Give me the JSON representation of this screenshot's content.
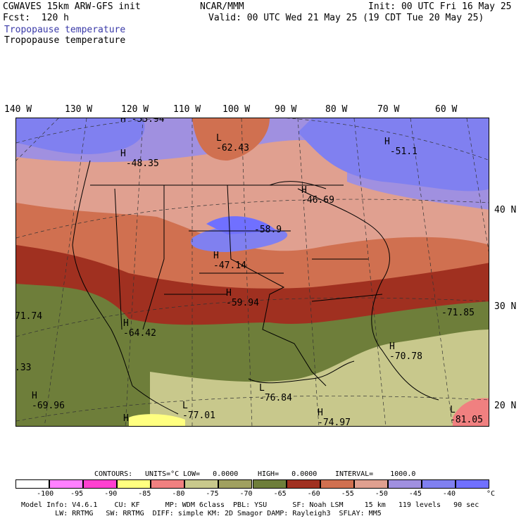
{
  "header": {
    "model_line": "CGWAVES 15km ARW-GFS init",
    "forecast_line": "Fcst:  120 h",
    "org": "NCAR/MMM",
    "init": "Init: 00 UTC Fri 16 May 25",
    "valid": "Valid: 00 UTC Wed 21 May 25 (19 CDT Tue 20 May 25)",
    "field_colored": "Tropopause temperature",
    "field_plain": "Tropopause temperature"
  },
  "axes": {
    "longitudes": [
      "140 W",
      "130 W",
      "120 W",
      "110 W",
      "100 W",
      "90 W",
      "80 W",
      "70 W",
      "60 W"
    ],
    "latitudes": [
      "40 N",
      "30 N",
      "20 N"
    ]
  },
  "extrema": [
    {
      "type": "H",
      "value": "-53.94"
    },
    {
      "type": "H",
      "value": "-48.35"
    },
    {
      "type": "L",
      "value": "-62.43"
    },
    {
      "type": "H",
      "value": "-51.1"
    },
    {
      "type": "H",
      "value": "-46.69"
    },
    {
      "type": "",
      "value": "-58.9"
    },
    {
      "type": "H",
      "value": "-47.14"
    },
    {
      "type": "H",
      "value": "-59.94"
    },
    {
      "type": "",
      "value": "71.74"
    },
    {
      "type": "H",
      "value": "-64.42"
    },
    {
      "type": "",
      "value": "-71.85"
    },
    {
      "type": "H",
      "value": "-70.78"
    },
    {
      "type": "",
      "value": ".33"
    },
    {
      "type": "L",
      "value": "-76.84"
    },
    {
      "type": "H",
      "value": "-69.96"
    },
    {
      "type": "L",
      "value": "-77.01"
    },
    {
      "type": "H",
      "value": "-74.97"
    },
    {
      "type": "L",
      "value": "-81.05"
    },
    {
      "type": "H",
      "value": ""
    }
  ],
  "contours_line": {
    "label": "CONTOURS:",
    "units": "UNITS=°C",
    "low": "LOW=   0.0000",
    "high": "HIGH=   0.0000",
    "interval": "INTERVAL=    1000.0"
  },
  "colorbar": {
    "colors": [
      "#ffffff",
      "#ff80ff",
      "#ff40d0",
      "#ffff80",
      "#f08080",
      "#c8c88c",
      "#a0a060",
      "#6e7e3a",
      "#a03020",
      "#d07050",
      "#e0a090",
      "#a090e0",
      "#8080f0",
      "#7070ff"
    ],
    "labels": [
      "-100",
      "-95",
      "-90",
      "-85",
      "-80",
      "-75",
      "-70",
      "-65",
      "-60",
      "-55",
      "-50",
      "-45",
      "-40",
      "°C"
    ]
  },
  "footer": {
    "line1": "Model Info: V4.6.1    CU: KF      MP: WDM 6class  PBL: YSU      SF: Noah LSM     15 km   119 levels   90 sec",
    "line2": "        LW: RRTMG   SW: RRTMG  DIFF: simple KM: 2D Smagor DAMP: Rayleigh3  SFLAY: MM5"
  }
}
